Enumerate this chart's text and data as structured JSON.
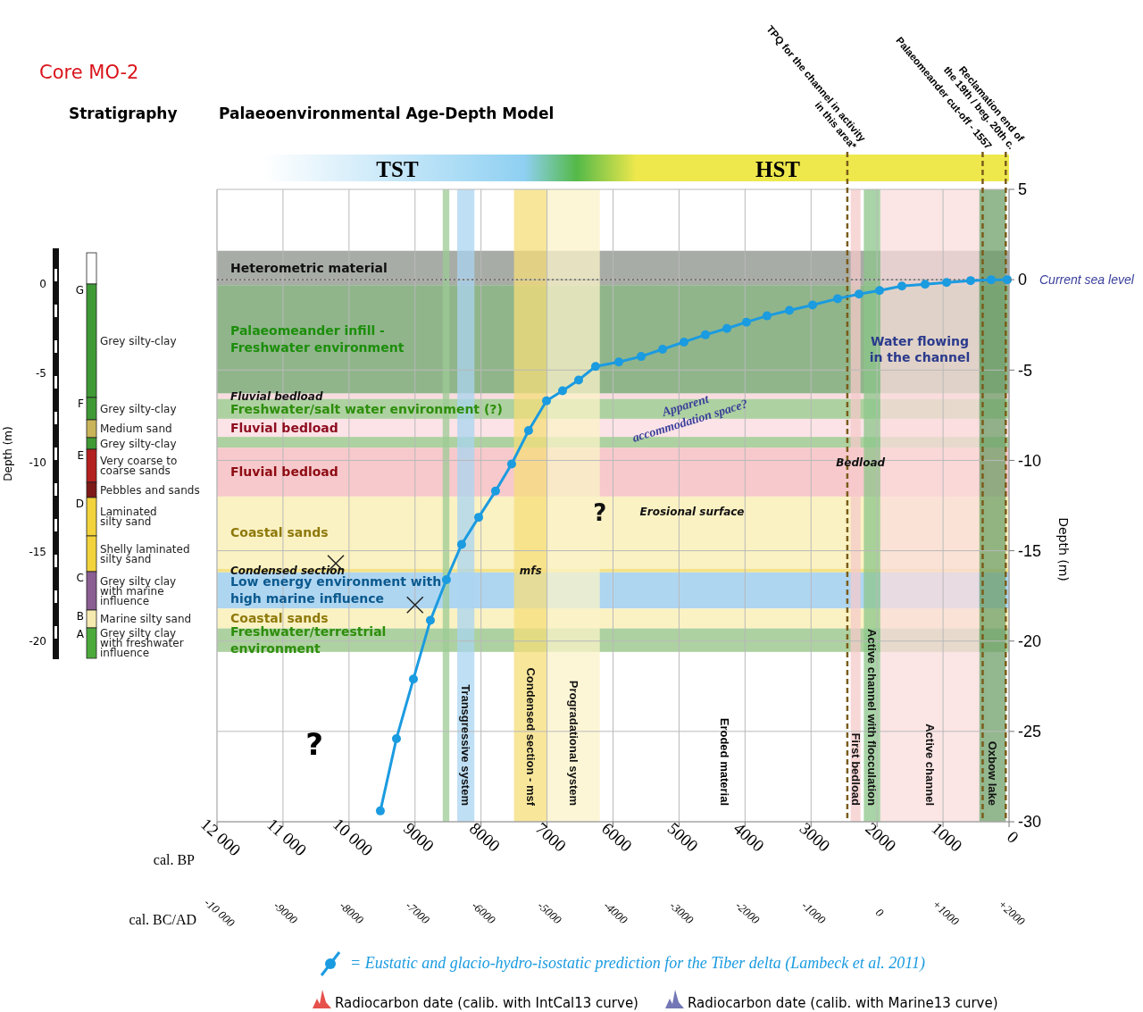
{
  "chart_data": [
    {
      "type": "bar",
      "stacked": true,
      "title": "Core MO-2",
      "subtitle": "Stratigraphy",
      "ylabel": "Depth (m)",
      "categories": [
        null
      ],
      "ylim": [
        -21,
        2
      ],
      "yticks": [
        0,
        -5,
        -10,
        -15,
        -20
      ],
      "series": [
        {
          "color": "#ffffff",
          "values": [
            1.75
          ]
        },
        {
          "name": "Grey silty-clay",
          "color": "#3f9a35",
          "values": [
            -6.35
          ]
        },
        {
          "name": "Grey silty-clay",
          "color": "#3f9a35",
          "values": [
            -1.25
          ]
        },
        {
          "name": "Medium sand",
          "color": "#c9b45a",
          "values": [
            -1.0
          ]
        },
        {
          "name": "Grey silty-clay",
          "color": "#3f9a35",
          "values": [
            -0.65
          ]
        },
        {
          "name": "Very coarse to\ncoarse sands",
          "color": "#b3201f",
          "values": [
            -1.85
          ]
        },
        {
          "name": "Pebbles and sands",
          "color": "#7d1a18",
          "values": [
            -0.85
          ]
        },
        {
          "name": "Laminated\nsilty sand",
          "color": "#f2d33c",
          "values": [
            -2.15
          ]
        },
        {
          "name": "Shelly laminated\nsilty sand",
          "color": "#f2d33c",
          "values": [
            -2.0
          ]
        },
        {
          "name": "Grey silty clay\nwith marine\ninfluence",
          "color": "#8a5d93",
          "values": [
            -2.15
          ]
        },
        {
          "name": "Marine silty sand",
          "color": "#f6eab0",
          "values": [
            -1.0
          ]
        },
        {
          "name": "Grey silty clay\nwith freshwater\ninfluence",
          "color": "#4caa3c",
          "values": [
            -1.7
          ]
        }
      ],
      "annotations": [
        "G",
        "F",
        "E",
        "D",
        "C",
        "B",
        "A"
      ]
    },
    {
      "type": "line",
      "title": "Palaeoenvironmental Age-Depth Model",
      "xlabel": "cal. BP",
      "x2label": "cal. BC/AD",
      "ylabel": "Depth (m)",
      "xlim": [
        12000,
        0
      ],
      "xticks": [
        {
          "value": 12000,
          "label": "12 000"
        },
        {
          "value": 11000,
          "label": "11 000"
        },
        {
          "value": 10000,
          "label": "10 000"
        },
        9000,
        8000,
        7000,
        6000,
        5000,
        4000,
        3000,
        2000,
        1000,
        0
      ],
      "x2lim": [
        -10000,
        2000
      ],
      "x2ticks": [
        {
          "value": -10000,
          "label": "-10 000"
        },
        -9000,
        -8000,
        -7000,
        -6000,
        -5000,
        -4000,
        -3000,
        -2000,
        -1000,
        0,
        {
          "value": 1000,
          "label": "+1000"
        },
        {
          "value": 2000,
          "label": "+2000"
        }
      ],
      "ylim": [
        -30,
        5
      ],
      "yticks": [
        5,
        0,
        -5,
        -10,
        -15,
        -20,
        -25,
        -30
      ],
      "grid": true,
      "legend": "bottom",
      "series": [
        {
          "type": "line",
          "name": "= Eustatic and glacio-hydro-isostatic prediction for the Tiber delta (Lambeck et al. 2011)",
          "color": "#1b9be0",
          "marker": "circle",
          "x": [
            9525,
            9281,
            9024,
            8767,
            8524,
            8294,
            8036,
            7780,
            7536,
            7279,
            7008,
            6765,
            6521,
            6264,
            5912,
            5574,
            5249,
            4925,
            4600,
            4275,
            3978,
            3667,
            3328,
            2977,
            2598,
            2273,
            1962,
            1624,
            1272,
            947,
            582,
            271,
            27
          ],
          "values": [
            -29.4,
            -25.4,
            -22.1,
            -18.85,
            -16.6,
            -14.65,
            -13.15,
            -11.7,
            -10.2,
            -8.35,
            -6.7,
            -6.15,
            -5.55,
            -4.8,
            -4.55,
            -4.25,
            -3.85,
            -3.45,
            -3.05,
            -2.7,
            -2.35,
            -2.0,
            -1.7,
            -1.4,
            -1.05,
            -0.8,
            -0.6,
            -0.35,
            -0.25,
            -0.15,
            -0.05,
            0,
            0
          ]
        },
        {
          "type": "scatter",
          "color": "#222222",
          "marker": "cross",
          "x": [
            10200,
            9000
          ],
          "values": [
            -15.7,
            -18
          ]
        }
      ],
      "bands": [
        {
          "axis": "y",
          "from": 1.6,
          "to": -0.3,
          "label": "Heterometric material",
          "color": "#9fa39c"
        },
        {
          "axis": "y",
          "from": -0.3,
          "to": -6.3,
          "label": "Palaeomeander infill -\nFreshwater environment",
          "color": "#84ad7e"
        },
        {
          "axis": "y",
          "from": -6.3,
          "to": -6.6,
          "label": "Fluvial bedload",
          "color": "#f8d8dc"
        },
        {
          "axis": "y",
          "from": -6.6,
          "to": -7.7,
          "label": "Freshwater/salt water environment (?)",
          "color": "#a4cc96"
        },
        {
          "axis": "y",
          "from": -7.7,
          "to": -8.7,
          "label": "Fluvial bedload",
          "color": "#fbe0e4"
        },
        {
          "axis": "y",
          "from": -8.7,
          "to": -9.3,
          "label": null,
          "color": "#a4cc96"
        },
        {
          "axis": "y",
          "from": -9.3,
          "to": -12,
          "label": "Fluvial bedload",
          "color": "#f6c3c6"
        },
        {
          "axis": "y",
          "from": -12,
          "to": -16,
          "label": "Coastal sands",
          "color": "#fbf1bc"
        },
        {
          "axis": "y",
          "from": -16,
          "to": -16.2,
          "label": "Condensed section",
          "color": "#f3df7c"
        },
        {
          "axis": "y",
          "from": -16.2,
          "to": -18.2,
          "label": "Low energy environment with\nhigh marine influence",
          "color": "#a6d2f0"
        },
        {
          "axis": "y",
          "from": -18.2,
          "to": -19.3,
          "label": "Coastal sands",
          "color": "#fbf1bc"
        },
        {
          "axis": "y",
          "from": -19.3,
          "to": -20.6,
          "label": "Freshwater/terrestrial\nenvironment",
          "color": "#a4cc96"
        },
        {
          "axis": "x",
          "from": 8580,
          "to": 8480,
          "label": null,
          "color": "#9ccb94"
        },
        {
          "axis": "x",
          "from": 8360,
          "to": 8100,
          "label": "Transgressive system",
          "color": "#a9d4f0"
        },
        {
          "axis": "x",
          "from": 7500,
          "to": 7000,
          "label": "Condensed section - msf",
          "color": "#f5de7a"
        },
        {
          "axis": "x",
          "from": 7000,
          "to": 6200,
          "label": "Progradational system",
          "color": "#fbf3c8"
        },
        {
          "axis": "x",
          "from": 2400,
          "to": 2250,
          "label": "First bedload",
          "color": "#f6c9c9"
        },
        {
          "axis": "x",
          "from": 2200,
          "to": 1950,
          "label": "Active channel with flocculation",
          "color": "#8cc68a"
        },
        {
          "axis": "x",
          "from": 1950,
          "to": 450,
          "label": "Active channel",
          "color": "#fbdcdc"
        },
        {
          "axis": "x",
          "from": 450,
          "to": 50,
          "label": "Oxbow lake",
          "color": "#6f9f6a"
        }
      ],
      "ref_lines": [
        {
          "axis": "y",
          "value": 0,
          "label": "Current sea level",
          "color": "#555555",
          "line_style": "dotted"
        },
        {
          "axis": "x",
          "value": 2450,
          "label": "TPQ for the channel in activity\nin this area*",
          "color": "#7a5c1a",
          "line_style": "dashed"
        },
        {
          "axis": "x",
          "value": 400,
          "label": "Palaeomeander cut-off - 1557",
          "color": "#7a5c1a",
          "line_style": "dashed"
        },
        {
          "axis": "x",
          "value": 50,
          "label": "Reclamation end of\nthe 19th / beg. 20th c.",
          "color": "#7a5c1a",
          "line_style": "dashed"
        }
      ],
      "annotations": [
        "TST",
        "HST",
        "Water flowing\nin the channel",
        "Apparent\naccommodation space?",
        {
          "text": "Bedload",
          "x": 2250,
          "y": -10.1
        },
        "Erosional surface",
        {
          "text": "mfs",
          "x": 7250,
          "y": -16.1
        },
        {
          "text": "?",
          "x": 6200,
          "y": -12.9
        },
        "?",
        "Eroded material",
        "Radiocarbon date (calib. with IntCal13 curve)",
        "Radiocarbon date (calib. with Marine13 curve)"
      ]
    }
  ]
}
